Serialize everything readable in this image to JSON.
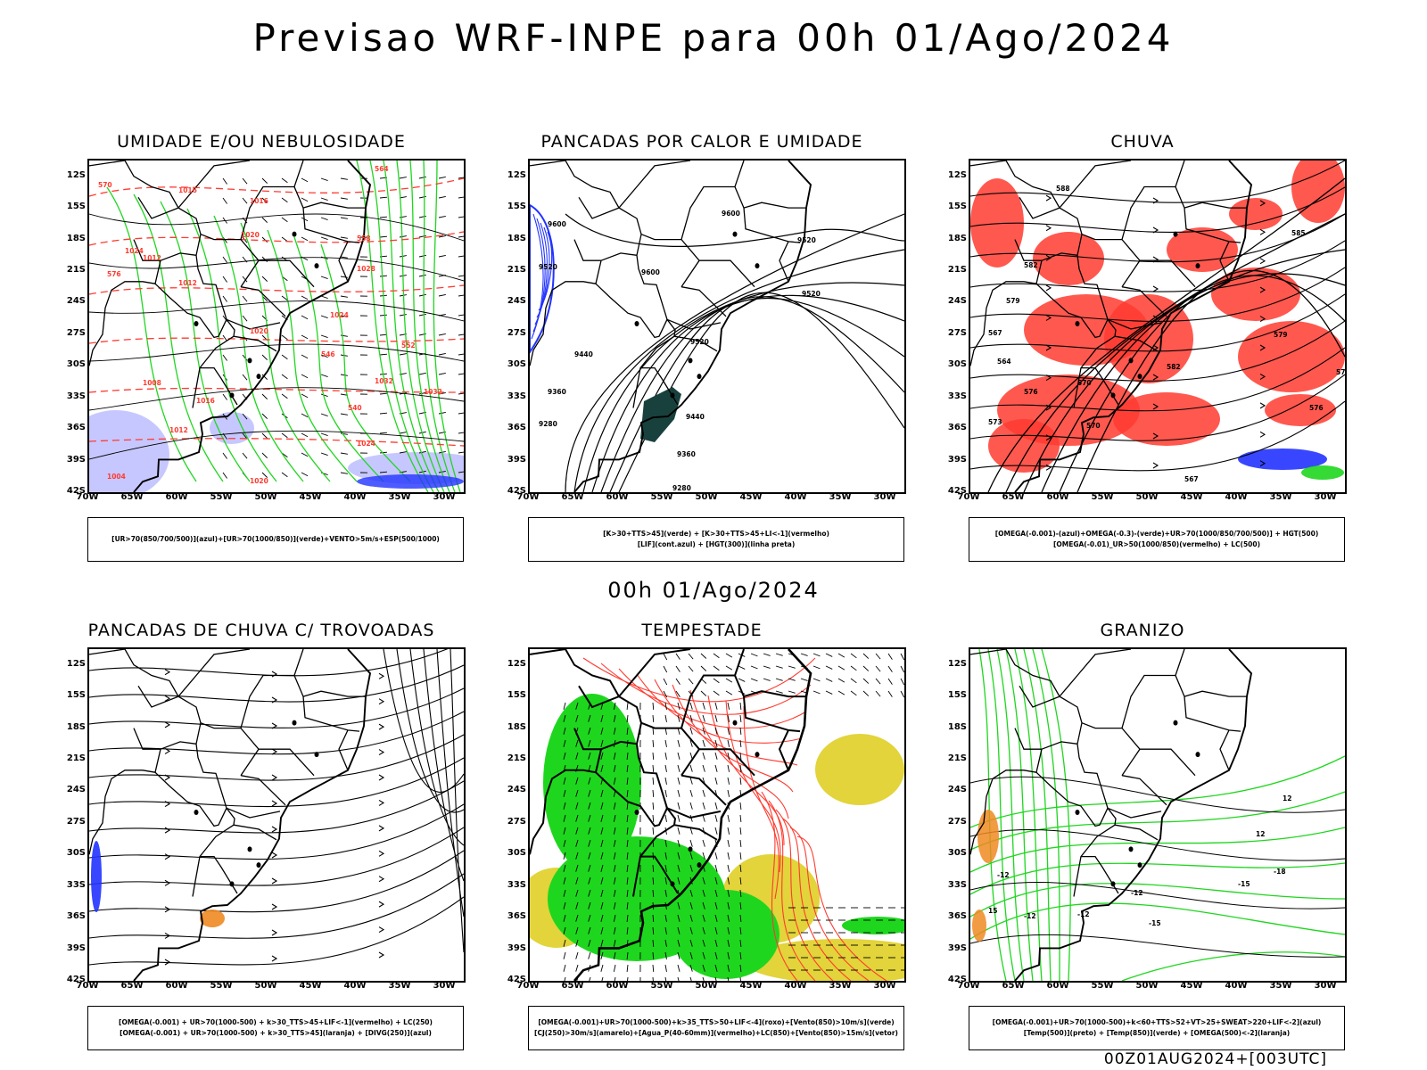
{
  "header": {
    "title": "Previsao WRF-INPE  para 00h 01/Ago/2024",
    "mid_title": "00h 01/Ago/2024",
    "footer": "00Z01AUG2024+[003UTC]"
  },
  "axes": {
    "lat_labels": [
      "12S",
      "15S",
      "18S",
      "21S",
      "24S",
      "27S",
      "30S",
      "33S",
      "36S",
      "39S",
      "42S"
    ],
    "lon_labels": [
      "70W",
      "65W",
      "60W",
      "55W",
      "50W",
      "45W",
      "40W",
      "35W",
      "30W"
    ]
  },
  "colors": {
    "frame": "#000000",
    "red": "#ff3b30",
    "green": "#1fd61f",
    "blue": "#2233ff",
    "lavender": "#b9b9ff",
    "yellow": "#e2d43a",
    "darkteal": "#18413e",
    "orange": "#ee8a22"
  },
  "panels": [
    {
      "id": "umidade",
      "title": "UMIDADE E/OU NEBULOSIDADE",
      "legend": [
        "[UR>70(850/700/500)](azul)+[UR>70(1000/850)](verde)+VENTO>5m/s+ESP(500/1000)"
      ],
      "contour_labels": [
        "1016",
        "1016",
        "1020",
        "1024",
        "1012",
        "1012",
        "1020",
        "1024",
        "1028",
        "1032",
        "1032",
        "1008",
        "1016",
        "1012",
        "1024",
        "1020",
        "1004",
        "570",
        "576",
        "564",
        "558",
        "552",
        "546",
        "540"
      ]
    },
    {
      "id": "pancadas-calor",
      "title": "PANCADAS POR CALOR E UMIDADE",
      "legend": [
        "[K>30+TTS>45](verde) + [K>30+TTS>45+LI<-1](vermelho)",
        "[LIF](cont.azul) + [HGT(300)](linha preta)"
      ],
      "contour_labels": [
        "9600",
        "9600",
        "9520",
        "9600",
        "9520",
        "9520",
        "9440",
        "9360",
        "9520",
        "9440",
        "9280",
        "9360",
        "9280"
      ]
    },
    {
      "id": "chuva",
      "title": "CHUVA",
      "legend": [
        "[OMEGA(-0.001)-(azul)+OMEGA(-0.3)-(verde)+UR>70(1000/850/700/500)] + HGT(500)",
        "[OMEGA(-0.01)_UR>50(1000/850)(vermelho) + LC(500)"
      ],
      "contour_labels": [
        "588",
        "585",
        "582",
        "579",
        "582",
        "576",
        "573",
        "570",
        "567",
        "579",
        "576",
        "573",
        "570",
        "567",
        "564"
      ]
    },
    {
      "id": "pancadas-trovoadas",
      "title": "PANCADAS DE CHUVA C/ TROVOADAS",
      "legend": [
        "[OMEGA(-0.001) + UR>70(1000-500) + k>30_TTS>45+LIF<-1](vermelho) + LC(250)",
        "[OMEGA(-0.001) + UR>70(1000-500) + k>30_TTS>45](laranja) + [DIVG(250)](azul)"
      ],
      "contour_labels": []
    },
    {
      "id": "tempestade",
      "title": "TEMPESTADE",
      "legend": [
        "[OMEGA(-0.001)+UR>70(1000-500)+k>35_TTS>50+LIF<-4](roxo)+[Vento(850)>10m/s](verde)",
        "[CJ(250)>30m/s](amarelo)+[Agua_P(40-60mm)](vermelho)+LC(850)+[Vento(850)>15m/s](vetor)"
      ],
      "contour_labels": []
    },
    {
      "id": "granizo",
      "title": "GRANIZO",
      "legend": [
        "[OMEGA(-0.001)+UR>70(1000-500)+k<60+TTS>52+VT>25+SWEAT>220+LIF<-2](azul)",
        "[Temp(500)](preto) + [Temp(850)](verde) + [OMEGA(500)<-2](laranja)"
      ],
      "contour_labels": [
        "-12",
        "-15",
        "-12",
        "-15",
        "-18",
        "-12",
        "15",
        "12",
        "12",
        "-12"
      ]
    }
  ]
}
